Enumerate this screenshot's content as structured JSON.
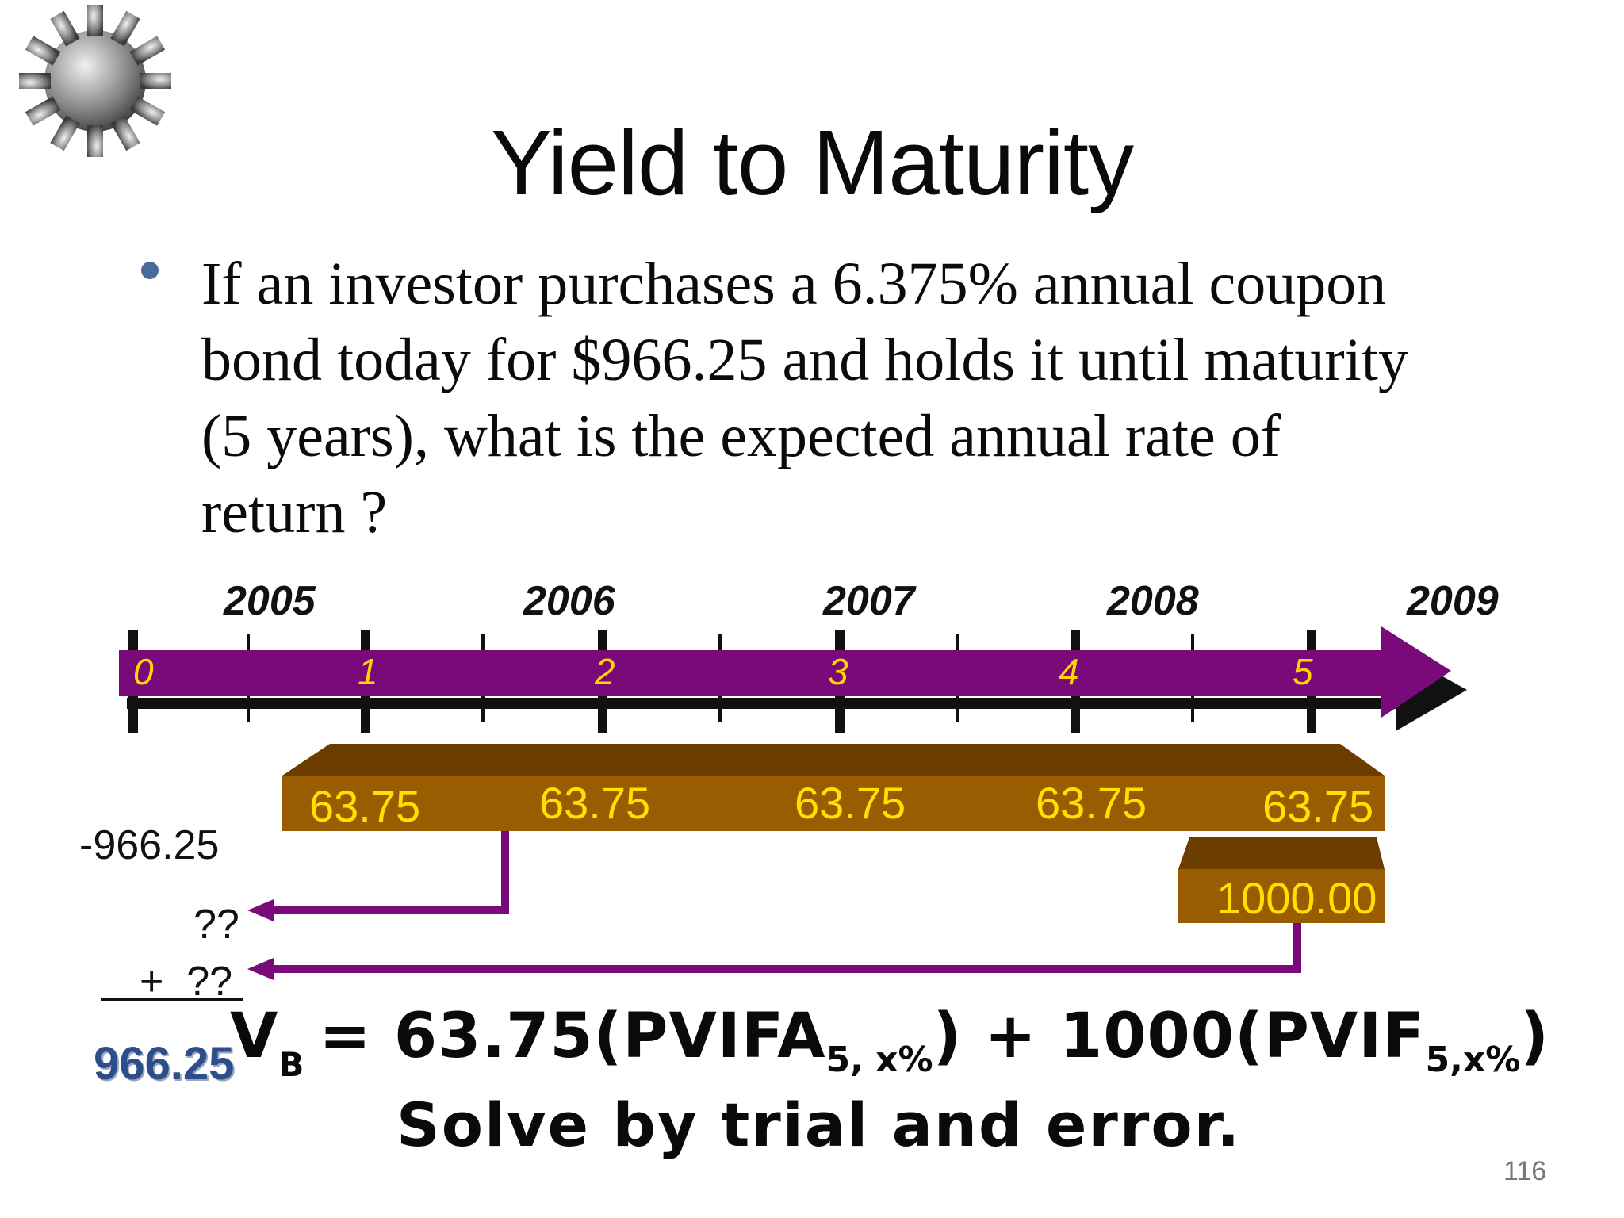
{
  "slide": {
    "title": "Yield to Maturity",
    "bullet_lines": [
      "If an investor purchases a 6.375% annual coupon",
      "bond today for $966.25 and holds it until maturity",
      "(5 years), what is the expected annual rate of",
      "return ?"
    ],
    "page_number": "116"
  },
  "timeline": {
    "years": [
      "2005",
      "2006",
      "2007",
      "2008",
      "2009"
    ],
    "periods": [
      "0",
      "1",
      "2",
      "3",
      "4",
      "5"
    ],
    "coupons": [
      "63.75",
      "63.75",
      "63.75",
      "63.75",
      "63.75"
    ],
    "principal": "1000.00",
    "price": "-966.25",
    "unknown_1": "??",
    "unknown_2": "+  ??",
    "sum": "966.25",
    "arrow_color": "#7a0a7a",
    "box_color": "#9a5c00"
  },
  "formula": {
    "v": "V",
    "v_sub": "B",
    "part1": "= 63.75(PVIFA",
    "sub1": "5, x%",
    "part2": ") + 1000(PVIF",
    "sub2": "5,x%",
    "part3": ")",
    "note": "Solve by trial and error."
  },
  "icons": {
    "gear": "gear-icon"
  }
}
